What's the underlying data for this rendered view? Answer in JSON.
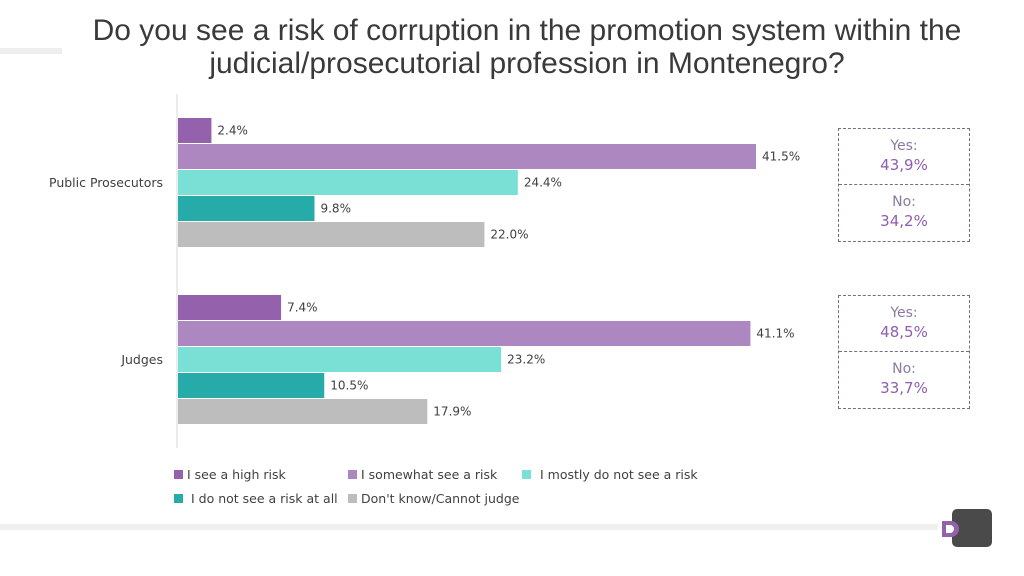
{
  "title_line1": "Do you see a risk of corruption in the promotion system within the",
  "title_line2": "judicial/prosecutorial profession in Montenegro?",
  "colors": {
    "high_risk": "#9461ad",
    "somewhat_risk": "#ad88c0",
    "mostly_not": "#7adfd4",
    "not_at_all": "#27aba9",
    "dont_know": "#bdbdbd"
  },
  "chart_data": {
    "type": "bar",
    "orientation": "horizontal",
    "xlim": [
      0,
      42
    ],
    "grid": false,
    "legend_position": "bottom",
    "categories": [
      "Public Prosecutors",
      "Judges"
    ],
    "series": [
      {
        "name": "I see a high risk",
        "values": [
          2.4,
          7.4
        ],
        "labels": [
          "2.4%",
          "7.4%"
        ],
        "color": "#9461ad"
      },
      {
        "name": "I somewhat see a risk",
        "values": [
          41.5,
          41.1
        ],
        "labels": [
          "41.5%",
          "41.1%"
        ],
        "color": "#ad88c0"
      },
      {
        "name": "I mostly do not see a risk",
        "values": [
          24.4,
          23.2
        ],
        "labels": [
          "24.4%",
          "23.2%"
        ],
        "color": "#7adfd4"
      },
      {
        "name": "I do not see a risk at all",
        "values": [
          9.8,
          10.5
        ],
        "labels": [
          "9.8%",
          "10.5%"
        ],
        "color": "#27aba9"
      },
      {
        "name": "Don't know/Cannot judge",
        "values": [
          22.0,
          17.9
        ],
        "labels": [
          "22.0%",
          "17.9%"
        ],
        "color": "#bdbdbd"
      }
    ]
  },
  "summaries": [
    {
      "group": "Public Prosecutors",
      "yes_label": "Yes:",
      "yes_value": "43,9%",
      "no_label": "No:",
      "no_value": "34,2%"
    },
    {
      "group": "Judges",
      "yes_label": "Yes:",
      "yes_value": "48,5%",
      "no_label": "No:",
      "no_value": "33,7%"
    }
  ],
  "logo": {
    "icon": "brand-logo-icon"
  }
}
